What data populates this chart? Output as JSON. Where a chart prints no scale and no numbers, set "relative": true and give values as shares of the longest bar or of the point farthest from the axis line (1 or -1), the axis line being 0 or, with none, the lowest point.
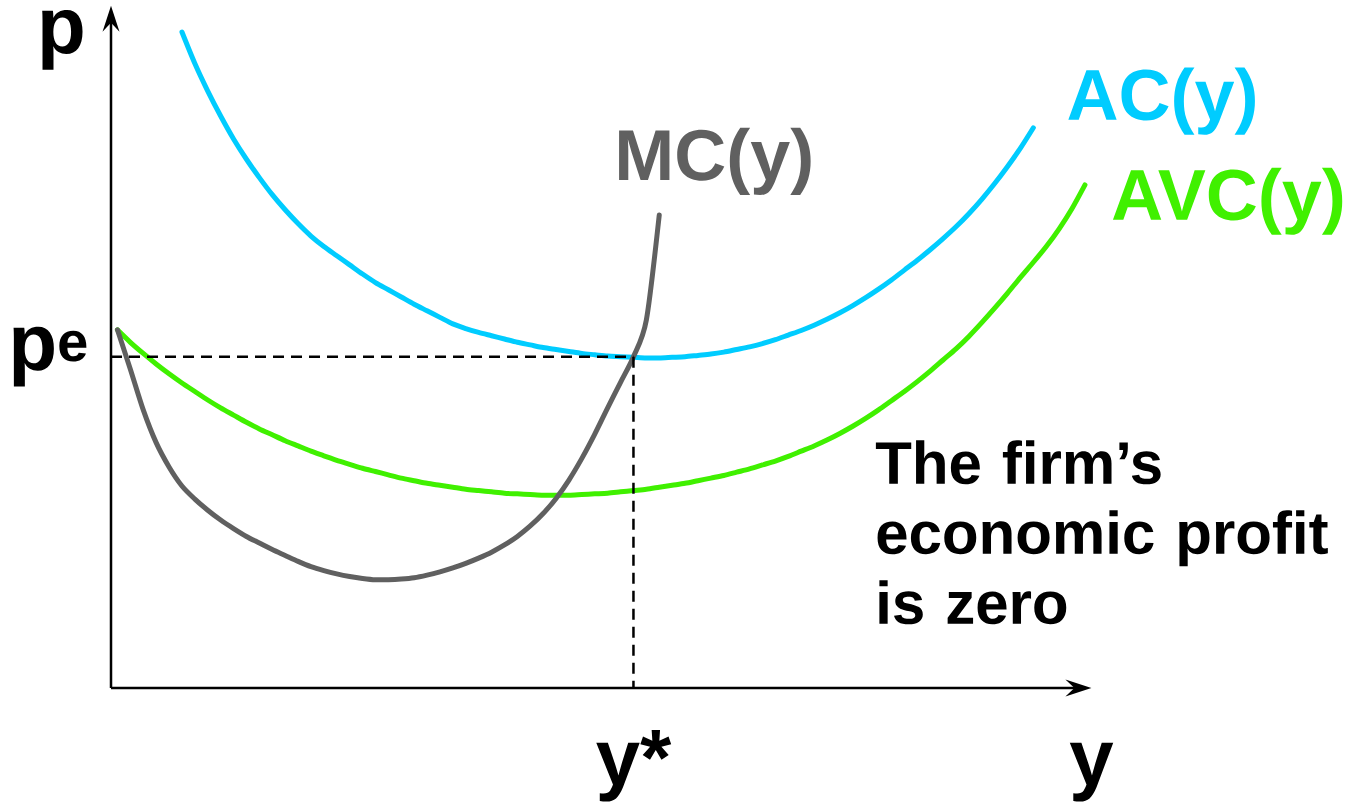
{
  "chart_data": {
    "type": "line",
    "relative": true,
    "xlabel": "y",
    "ylabel": "p",
    "categories": [
      null,
      null,
      null,
      null,
      null,
      null,
      null,
      null,
      null,
      null,
      null,
      null,
      null,
      null,
      null,
      null,
      null,
      null,
      null,
      null,
      null,
      null,
      null,
      null,
      null,
      null,
      null,
      null,
      null,
      null,
      null,
      null,
      null,
      null,
      null,
      null,
      null,
      null,
      null,
      null,
      null,
      null,
      null,
      null,
      null,
      null,
      null,
      null,
      null,
      null,
      null,
      null,
      null,
      null,
      null,
      null,
      null,
      null,
      null,
      null,
      null,
      null,
      null,
      null,
      null,
      null,
      null,
      null,
      null,
      null,
      null,
      null,
      null,
      null,
      null,
      null
    ],
    "series": [
      {
        "name": "AC(y)",
        "color": "#00ccff",
        "values": [
          null,
          null,
          null,
          null,
          null,
          1.0,
          0.952,
          0.91,
          0.872,
          0.837,
          0.806,
          0.778,
          0.752,
          0.729,
          0.708,
          0.689,
          0.673,
          0.659,
          0.645,
          0.631,
          0.618,
          0.607,
          0.596,
          0.585,
          0.575,
          0.565,
          0.555,
          0.548,
          0.542,
          0.537,
          0.532,
          0.527,
          0.523,
          0.519,
          0.516,
          0.513,
          0.51,
          0.508,
          0.506,
          0.505,
          0.504,
          0.503,
          0.503,
          0.504,
          0.505,
          0.507,
          0.509,
          0.512,
          0.516,
          0.52,
          0.525,
          0.531,
          0.538,
          0.545,
          0.553,
          0.562,
          0.572,
          0.583,
          0.595,
          0.608,
          0.622,
          0.637,
          0.652,
          0.668,
          0.685,
          0.703,
          0.723,
          0.745,
          0.769,
          0.795,
          0.823,
          0.854,
          null,
          null,
          null,
          null
        ]
      },
      {
        "name": "AVC(y)",
        "color": "#40f000",
        "values": [
          0.546,
          0.527,
          0.51,
          0.494,
          0.479,
          0.465,
          0.452,
          0.439,
          0.427,
          0.416,
          0.405,
          0.395,
          0.386,
          0.377,
          0.369,
          0.361,
          0.354,
          0.347,
          0.341,
          0.335,
          0.33,
          0.325,
          0.32,
          0.316,
          0.312,
          0.309,
          0.306,
          0.303,
          0.301,
          0.299,
          0.297,
          0.296,
          0.295,
          0.294,
          0.294,
          0.294,
          0.295,
          0.296,
          0.297,
          0.299,
          0.301,
          0.303,
          0.306,
          0.309,
          0.312,
          0.316,
          0.32,
          0.324,
          0.329,
          0.334,
          0.34,
          0.346,
          0.353,
          0.361,
          0.369,
          0.378,
          0.388,
          0.399,
          0.411,
          0.424,
          0.438,
          0.452,
          0.467,
          0.483,
          0.5,
          0.517,
          0.536,
          0.557,
          0.579,
          0.602,
          0.626,
          0.649,
          0.673,
          0.7,
          0.731,
          0.767
        ]
      },
      {
        "name": "MC(y)",
        "color": "#606060",
        "values": [
          0.546,
          0.486,
          0.424,
          0.374,
          0.337,
          0.308,
          0.288,
          0.271,
          0.256,
          0.243,
          0.231,
          0.221,
          0.211,
          0.202,
          0.193,
          0.185,
          0.179,
          0.174,
          0.17,
          0.167,
          0.165,
          0.165,
          0.166,
          0.168,
          0.172,
          0.177,
          0.183,
          0.19,
          0.198,
          0.207,
          0.218,
          0.231,
          0.247,
          0.266,
          0.289,
          0.317,
          0.35,
          0.387,
          0.427,
          0.466,
          0.505,
          0.561,
          0.721,
          null,
          null,
          null,
          null,
          null,
          null,
          null,
          null,
          null,
          null,
          null,
          null,
          null,
          null,
          null,
          null,
          null,
          null,
          null,
          null,
          null,
          null,
          null,
          null,
          null,
          null,
          null,
          null,
          null,
          null,
          null,
          null,
          null
        ]
      }
    ],
    "ref_lines": [
      {
        "axis": "y",
        "value": 0.505,
        "label": "p$^{e}$",
        "color": "#000000",
        "line_style": "dashed"
      }
    ],
    "annotations": [
      "The firm’s economic profit is zero",
      "y*"
    ]
  }
}
